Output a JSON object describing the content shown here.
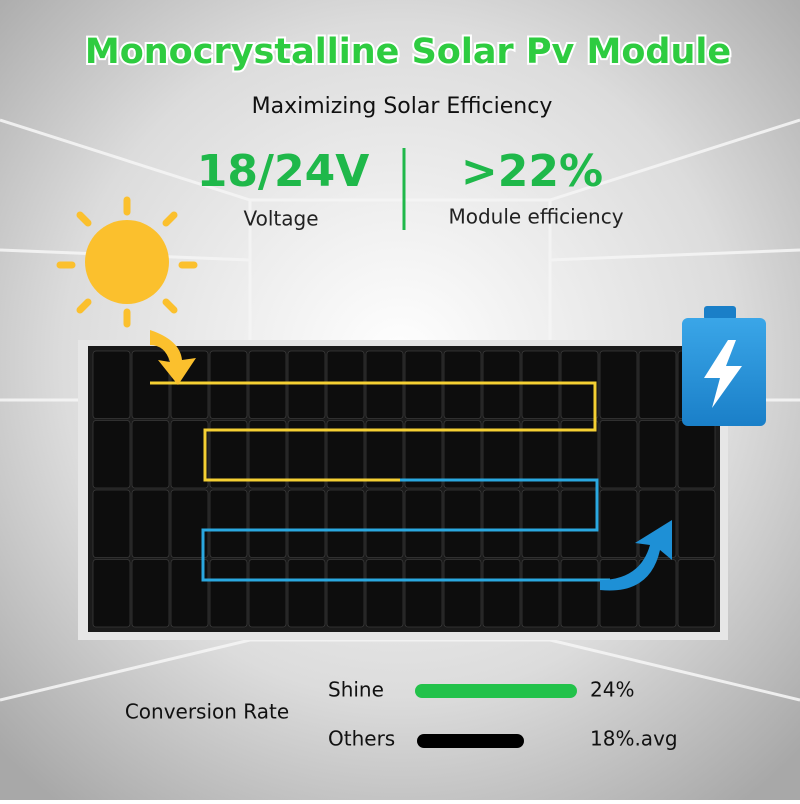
{
  "header": {
    "title": "Monocrystalline Solar Pv Module",
    "subtitle": "Maximizing Solar Efficiency"
  },
  "specs": [
    {
      "value": "18/24V",
      "label": "Voltage"
    },
    {
      "value": ">22%",
      "label": "Module efficiency"
    }
  ],
  "comparison": {
    "title": "Conversion Rate",
    "rows": [
      {
        "name": "Shine",
        "value": "24%"
      },
      {
        "name": "Others",
        "value": "18%.avg"
      }
    ]
  }
}
